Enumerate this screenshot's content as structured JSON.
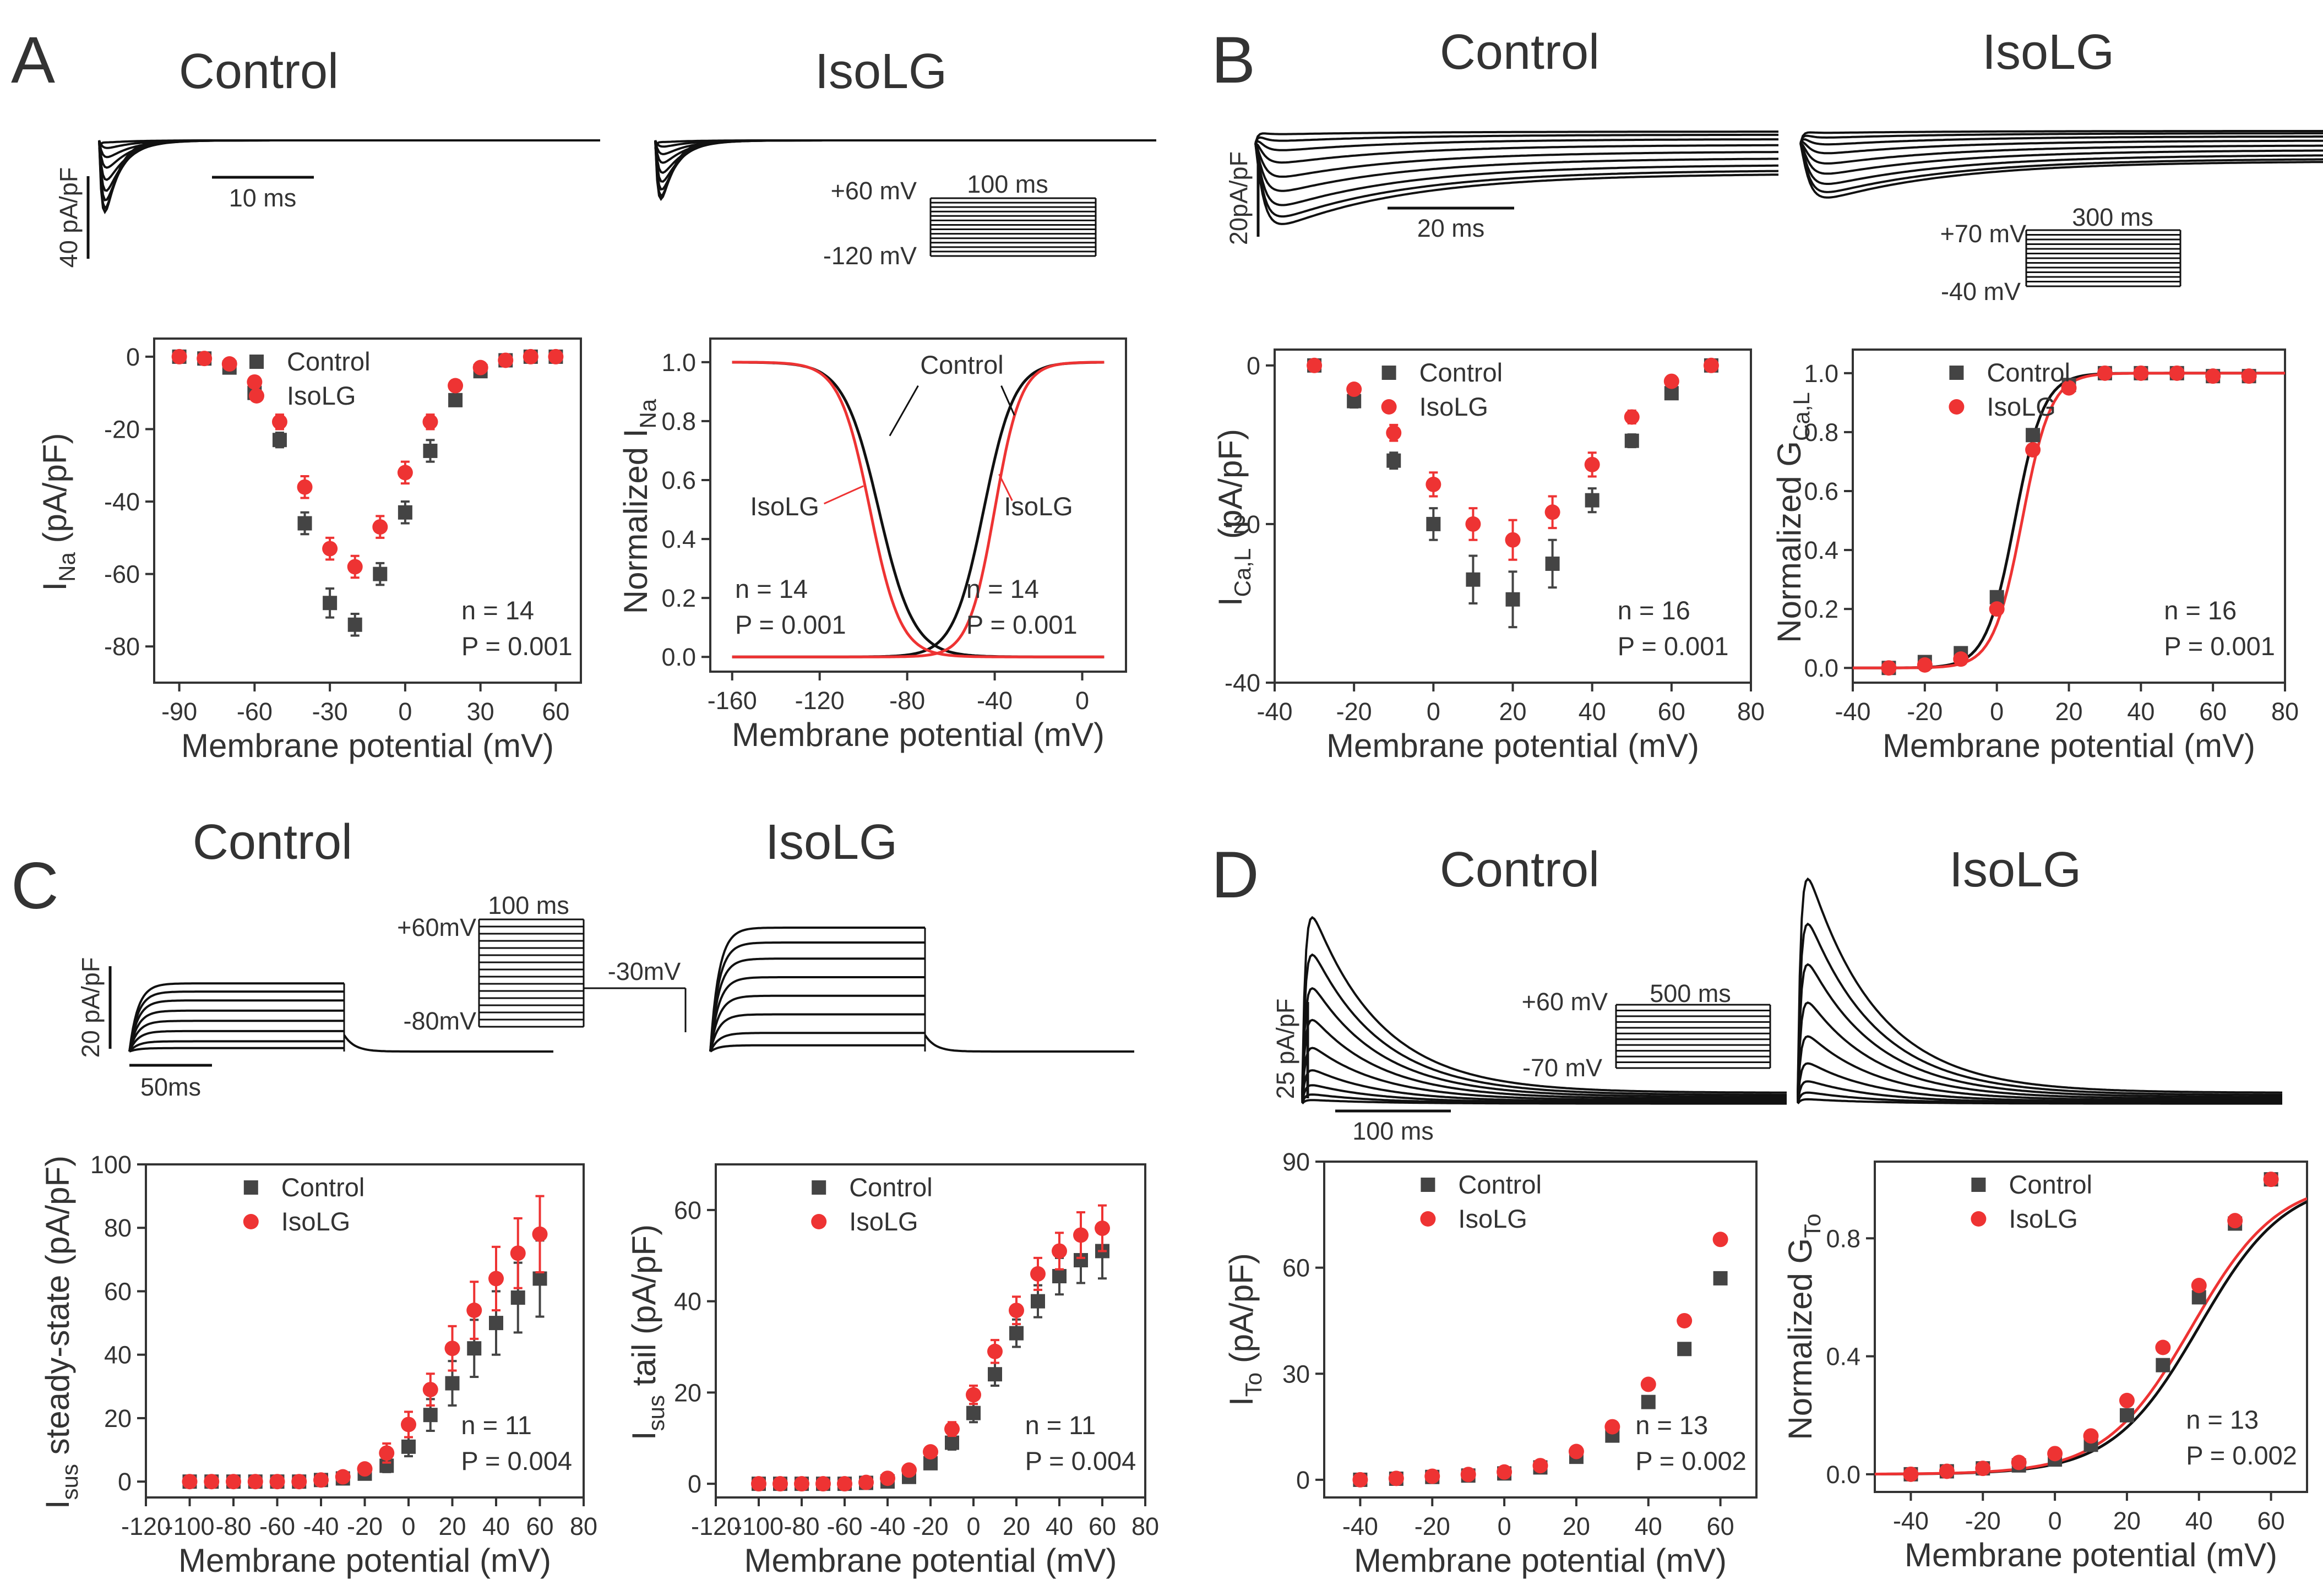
{
  "colors": {
    "control": "#444444",
    "isolg": "#ee3333",
    "axis": "#333333"
  },
  "panels": {
    "A": {
      "label": "A",
      "trace_titles": [
        "Control",
        "IsoLG"
      ],
      "scale_y": "40 pA/pF",
      "scale_x": "10 ms",
      "protocol": {
        "v_high": "+60 mV",
        "v_low": "-120 mV",
        "duration": "100 ms"
      }
    },
    "B": {
      "label": "B",
      "trace_titles": [
        "Control",
        "IsoLG"
      ],
      "scale_y": "20pA/pF",
      "scale_x": "20 ms",
      "protocol": {
        "v_high": "+70 mV",
        "v_low": "-40 mV",
        "duration": "300 ms"
      }
    },
    "C": {
      "label": "C",
      "trace_titles": [
        "Control",
        "IsoLG"
      ],
      "scale_y": "20 pA/pF",
      "scale_x": "50ms",
      "protocol": {
        "v_high": "+60mV",
        "v_low": "-80mV",
        "duration": "100 ms",
        "v_tail": "-30mV"
      }
    },
    "D": {
      "label": "D",
      "trace_titles": [
        "Control",
        "IsoLG"
      ],
      "scale_y": "25 pA/pF",
      "scale_x": "100 ms",
      "protocol": {
        "v_high": "+60 mV",
        "v_low": "-70 mV",
        "duration": "500 ms"
      }
    }
  },
  "chart_data": [
    {
      "id": "A-IV",
      "type": "scatter",
      "xlabel": "Membrane potential (mV)",
      "ylabel_main": "I",
      "ylabel_sub": "Na",
      "ylabel_unit": " (pA/pF)",
      "xlim": [
        -100,
        70
      ],
      "ylim": [
        -90,
        5
      ],
      "xticks": [
        -90,
        -60,
        -30,
        0,
        30,
        60
      ],
      "yticks": [
        0,
        -20,
        -40,
        -60,
        -80
      ],
      "legend": [
        "Control",
        "IsoLG"
      ],
      "stats": [
        "n = 14",
        "P = 0.001"
      ],
      "series": [
        {
          "name": "Control",
          "marker": "square",
          "x": [
            -90,
            -80,
            -70,
            -60,
            -50,
            -40,
            -30,
            -20,
            -10,
            0,
            10,
            20,
            30,
            40,
            50,
            60
          ],
          "y": [
            0,
            -0.5,
            -3,
            -10,
            -23,
            -46,
            -68,
            -74,
            -60,
            -43,
            -26,
            -12,
            -4,
            -1,
            0,
            0
          ],
          "err": [
            0.3,
            0.5,
            1,
            1.5,
            2,
            3,
            4,
            3,
            3,
            3,
            3,
            1.5,
            1,
            0.5,
            0.3,
            0.3
          ]
        },
        {
          "name": "IsoLG",
          "marker": "circle",
          "x": [
            -90,
            -80,
            -70,
            -60,
            -50,
            -40,
            -30,
            -20,
            -10,
            0,
            10,
            20,
            30,
            40,
            50,
            60
          ],
          "y": [
            0,
            -0.5,
            -2,
            -7,
            -18,
            -36,
            -53,
            -58,
            -47,
            -32,
            -18,
            -8,
            -3,
            -1,
            0,
            0
          ],
          "err": [
            0.3,
            0.5,
            1,
            1.5,
            2,
            3,
            3,
            3,
            3,
            3,
            2,
            1.5,
            1,
            0.5,
            0.3,
            0.3
          ]
        }
      ]
    },
    {
      "id": "A-norm",
      "type": "line",
      "xlabel": "Membrane potential (mV)",
      "ylabel_main": "Normalized I",
      "ylabel_sub": "Na",
      "ylabel_unit": "",
      "xlim": [
        -170,
        20
      ],
      "ylim": [
        -0.05,
        1.08
      ],
      "xticks": [
        -160,
        -120,
        -80,
        -40,
        0
      ],
      "yticks": [
        0.0,
        0.2,
        0.4,
        0.6,
        0.8,
        1.0
      ],
      "series": [
        {
          "name": "Control",
          "kind": "inactivation",
          "v_half": -93,
          "k": 8
        },
        {
          "name": "Control",
          "kind": "activation",
          "v_half": -45,
          "k": 7
        },
        {
          "name": "IsoLG",
          "kind": "inactivation",
          "v_half": -97,
          "k": 7
        },
        {
          "name": "IsoLG",
          "kind": "activation",
          "v_half": -40,
          "k": 6
        }
      ],
      "labels": {
        "control": "Control",
        "isolg_left": "IsoLG",
        "isolg_right": "IsoLG"
      },
      "stats_left": [
        "n = 14",
        "P = 0.001"
      ],
      "stats_right": [
        "n = 14",
        "P = 0.001"
      ]
    },
    {
      "id": "B-IV",
      "type": "scatter",
      "xlabel": "Membrane potential (mV)",
      "ylabel_main": "I",
      "ylabel_sub": "Ca,L",
      "ylabel_unit": "  (pA/pF)",
      "xlim": [
        -40,
        80
      ],
      "ylim": [
        -40,
        2
      ],
      "xticks": [
        -40,
        -20,
        0,
        20,
        40,
        60,
        80
      ],
      "yticks": [
        0,
        -20,
        -40
      ],
      "legend": [
        "Control",
        "IsoLG"
      ],
      "stats": [
        "n = 16",
        "P = 0.001"
      ],
      "series": [
        {
          "name": "Control",
          "marker": "square",
          "x": [
            -30,
            -20,
            -10,
            0,
            10,
            20,
            30,
            40,
            50,
            60,
            70
          ],
          "y": [
            0,
            -4.5,
            -12,
            -20,
            -27,
            -29.5,
            -25,
            -17,
            -9.5,
            -3.5,
            0
          ],
          "err": [
            0.3,
            0.8,
            1,
            2,
            3,
            3.5,
            3,
            1.5,
            0.8,
            0.5,
            0.3
          ]
        },
        {
          "name": "IsoLG",
          "marker": "circle",
          "x": [
            -30,
            -20,
            -10,
            0,
            10,
            20,
            30,
            40,
            50,
            60,
            70
          ],
          "y": [
            0,
            -3,
            -8.5,
            -15,
            -20,
            -22,
            -18.5,
            -12.5,
            -6.5,
            -2,
            0
          ],
          "err": [
            0.3,
            0.5,
            1,
            1.5,
            2,
            2.5,
            2,
            1.5,
            0.8,
            0.5,
            0.3
          ]
        }
      ]
    },
    {
      "id": "B-G",
      "type": "scatter",
      "xlabel": "Membrane potential (mV)",
      "ylabel_main": "Normalized G",
      "ylabel_sub": "Ca,L",
      "ylabel_unit": "",
      "xlim": [
        -40,
        80
      ],
      "ylim": [
        -0.05,
        1.08
      ],
      "xticks": [
        -40,
        -20,
        0,
        20,
        40,
        60,
        80
      ],
      "yticks": [
        0.0,
        0.2,
        0.4,
        0.6,
        0.8,
        1.0
      ],
      "legend": [
        "Control",
        "IsoLG"
      ],
      "stats": [
        "n = 16",
        "P = 0.001"
      ],
      "fits": [
        {
          "name": "Control",
          "v_half": 5,
          "k": 4
        },
        {
          "name": "IsoLG",
          "v_half": 7,
          "k": 4
        }
      ],
      "series": [
        {
          "name": "Control",
          "marker": "square",
          "x": [
            -30,
            -20,
            -10,
            0,
            10,
            20,
            30,
            40,
            50,
            60,
            70
          ],
          "y": [
            0,
            0.02,
            0.05,
            0.24,
            0.79,
            0.96,
            1.0,
            1.0,
            1.0,
            0.99,
            0.99
          ]
        },
        {
          "name": "IsoLG",
          "marker": "circle",
          "x": [
            -30,
            -20,
            -10,
            0,
            10,
            20,
            30,
            40,
            50,
            60,
            70
          ],
          "y": [
            0,
            0.01,
            0.03,
            0.2,
            0.74,
            0.95,
            1.0,
            1.0,
            1.0,
            0.99,
            0.99
          ]
        }
      ]
    },
    {
      "id": "C-ss",
      "type": "scatter",
      "xlabel": "Membrane potential (mV)",
      "ylabel_main": "I",
      "ylabel_sub": "sus",
      "ylabel_unit": " steady-state (pA/pF)",
      "xlim": [
        -120,
        80
      ],
      "ylim": [
        -5,
        100
      ],
      "xticks": [
        -120,
        -100,
        -80,
        -60,
        -40,
        -20,
        0,
        20,
        40,
        60,
        80
      ],
      "yticks": [
        0,
        20,
        40,
        60,
        80,
        100
      ],
      "legend": [
        "Control",
        "IsoLG"
      ],
      "stats": [
        "n = 11",
        "P = 0.004"
      ],
      "series": [
        {
          "name": "Control",
          "marker": "square",
          "x": [
            -100,
            -90,
            -80,
            -70,
            -60,
            -50,
            -40,
            -30,
            -20,
            -10,
            0,
            10,
            20,
            30,
            40,
            50,
            60
          ],
          "y": [
            0,
            0,
            0,
            0,
            0,
            0,
            0.5,
            1,
            2.5,
            5,
            11,
            21,
            31,
            42,
            50,
            58,
            64
          ],
          "err": [
            0.3,
            0.3,
            0.3,
            0.3,
            0.3,
            0.3,
            0.5,
            0.5,
            1,
            2,
            3,
            5,
            7,
            9,
            10,
            11,
            12
          ]
        },
        {
          "name": "IsoLG",
          "marker": "circle",
          "x": [
            -100,
            -90,
            -80,
            -70,
            -60,
            -50,
            -40,
            -30,
            -20,
            -10,
            0,
            10,
            20,
            30,
            40,
            50,
            60
          ],
          "y": [
            0,
            0,
            0,
            0,
            0,
            0,
            0.5,
            1.5,
            4,
            9,
            18,
            29,
            42,
            54,
            64,
            72,
            78
          ],
          "err": [
            0.3,
            0.3,
            0.3,
            0.3,
            0.3,
            0.3,
            0.5,
            1,
            1.5,
            3,
            4,
            5,
            7,
            9,
            10,
            11,
            12
          ]
        }
      ]
    },
    {
      "id": "C-tail",
      "type": "scatter",
      "xlabel": "Membrane potential (mV)",
      "ylabel_main": "I",
      "ylabel_sub": "sus",
      "ylabel_unit": " tail (pA/pF)",
      "xlim": [
        -120,
        80
      ],
      "ylim": [
        -3,
        70
      ],
      "xticks": [
        -120,
        -100,
        -80,
        -60,
        -40,
        -20,
        0,
        20,
        40,
        60,
        80
      ],
      "yticks": [
        0,
        20,
        40,
        60
      ],
      "legend": [
        "Control",
        "IsoLG"
      ],
      "stats": [
        "n = 11",
        "P = 0.004"
      ],
      "series": [
        {
          "name": "Control",
          "marker": "square",
          "x": [
            -100,
            -90,
            -80,
            -70,
            -60,
            -50,
            -40,
            -30,
            -20,
            -10,
            0,
            10,
            20,
            30,
            40,
            50,
            60
          ],
          "y": [
            0,
            0,
            0,
            0,
            0,
            0.2,
            0.5,
            1.5,
            4.5,
            9,
            15.5,
            24,
            33,
            40,
            45.5,
            49,
            51
          ],
          "err": [
            0.3,
            0.3,
            0.3,
            0.3,
            0.3,
            0.3,
            0.5,
            0.5,
            1,
            1.5,
            2,
            2.5,
            3,
            3.5,
            4,
            5,
            6
          ]
        },
        {
          "name": "IsoLG",
          "marker": "circle",
          "x": [
            -100,
            -90,
            -80,
            -70,
            -60,
            -50,
            -40,
            -30,
            -20,
            -10,
            0,
            10,
            20,
            30,
            40,
            50,
            60
          ],
          "y": [
            0,
            0,
            0,
            0,
            0,
            0.3,
            1.2,
            3,
            7,
            12,
            19.5,
            29,
            38,
            46,
            51,
            54.5,
            56
          ],
          "err": [
            0.3,
            0.3,
            0.3,
            0.3,
            0.3,
            0.3,
            0.5,
            0.8,
            1,
            1.5,
            2,
            2.5,
            3,
            3.5,
            4,
            5,
            5
          ]
        }
      ]
    },
    {
      "id": "D-IV",
      "type": "scatter",
      "xlabel": "Membrane potential (mV)",
      "ylabel_main": "I",
      "ylabel_sub": "To",
      "ylabel_unit": "  (pA/pF)",
      "xlim": [
        -50,
        70
      ],
      "ylim": [
        -5,
        90
      ],
      "xticks": [
        -40,
        -20,
        0,
        20,
        40,
        60
      ],
      "yticks": [
        0,
        30,
        60,
        90
      ],
      "legend": [
        "Control",
        "IsoLG"
      ],
      "stats": [
        "n = 13",
        "P = 0.002"
      ],
      "series": [
        {
          "name": "Control",
          "marker": "square",
          "x": [
            -40,
            -30,
            -20,
            -10,
            0,
            10,
            20,
            30,
            40,
            50,
            60
          ],
          "y": [
            0,
            0.3,
            0.8,
            1.2,
            1.8,
            3.5,
            6.5,
            12.5,
            22,
            37,
            57
          ]
        },
        {
          "name": "IsoLG",
          "marker": "circle",
          "x": [
            -40,
            -30,
            -20,
            -10,
            0,
            10,
            20,
            30,
            40,
            50,
            60
          ],
          "y": [
            0,
            0.4,
            1,
            1.5,
            2.2,
            4,
            8,
            15,
            27,
            45,
            68
          ]
        }
      ]
    },
    {
      "id": "D-G",
      "type": "scatter",
      "xlabel": "Membrane potential (mV)",
      "ylabel_main": "Normalized G",
      "ylabel_sub": "To",
      "ylabel_unit": "",
      "xlim": [
        -50,
        70
      ],
      "ylim": [
        -0.06,
        1.06
      ],
      "xticks": [
        -40,
        -20,
        0,
        20,
        40,
        60
      ],
      "yticks": [
        0.0,
        0.4,
        0.8
      ],
      "legend": [
        "Control",
        "IsoLG"
      ],
      "stats": [
        "n = 13",
        "P = 0.002"
      ],
      "fits": [
        {
          "name": "Control",
          "v_half": 40,
          "k": 12
        },
        {
          "name": "IsoLG",
          "v_half": 38,
          "k": 12
        }
      ],
      "series": [
        {
          "name": "Control",
          "marker": "square",
          "x": [
            -40,
            -30,
            -20,
            -10,
            0,
            10,
            20,
            30,
            40,
            50,
            60
          ],
          "y": [
            0,
            0.01,
            0.02,
            0.03,
            0.05,
            0.1,
            0.2,
            0.37,
            0.6,
            0.85,
            1.0
          ]
        },
        {
          "name": "IsoLG",
          "marker": "circle",
          "x": [
            -40,
            -30,
            -20,
            -10,
            0,
            10,
            20,
            30,
            40,
            50,
            60
          ],
          "y": [
            0,
            0.01,
            0.02,
            0.04,
            0.07,
            0.13,
            0.25,
            0.43,
            0.64,
            0.86,
            1.0
          ]
        }
      ]
    }
  ]
}
